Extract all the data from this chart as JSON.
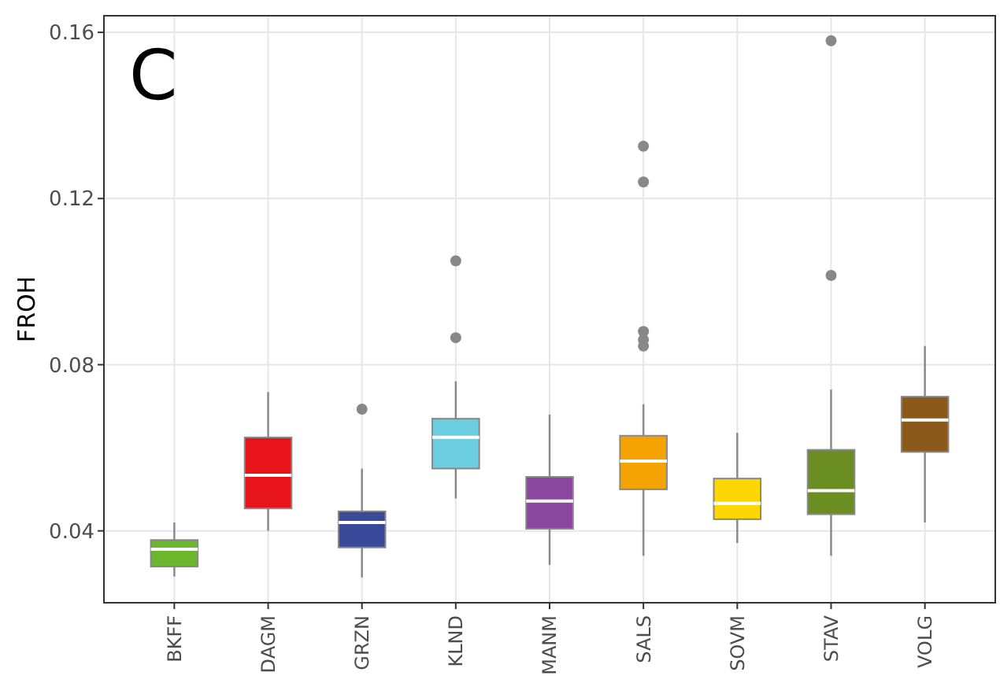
{
  "chart_data": {
    "type": "box",
    "title": "C",
    "ylabel": "FROH",
    "categories": [
      "BKFF",
      "DAGM",
      "GRZN",
      "KLND",
      "MANM",
      "SALS",
      "SOVM",
      "STAV",
      "VOLG"
    ],
    "colors": [
      "#6ab72e",
      "#e8141c",
      "#3a4a9a",
      "#6ccde0",
      "#8b46a0",
      "#f5a300",
      "#ffd700",
      "#6b8e23",
      "#8b5a1b"
    ],
    "boxes": [
      {
        "low": 0.029,
        "q1": 0.0314,
        "median": 0.0356,
        "q3": 0.0378,
        "high": 0.042
      },
      {
        "low": 0.04,
        "q1": 0.0454,
        "median": 0.0534,
        "q3": 0.0625,
        "high": 0.0734
      },
      {
        "low": 0.0288,
        "q1": 0.036,
        "median": 0.042,
        "q3": 0.0447,
        "high": 0.055,
        "outliers": [
          0.0693
        ]
      },
      {
        "low": 0.0478,
        "q1": 0.055,
        "median": 0.0625,
        "q3": 0.067,
        "high": 0.076,
        "outliers": [
          0.0865,
          0.105
        ]
      },
      {
        "low": 0.0318,
        "q1": 0.0405,
        "median": 0.0472,
        "q3": 0.053,
        "high": 0.068
      },
      {
        "low": 0.034,
        "q1": 0.05,
        "median": 0.0568,
        "q3": 0.0629,
        "high": 0.0705,
        "outliers": [
          0.0845,
          0.086,
          0.088,
          0.124,
          0.1326
        ]
      },
      {
        "low": 0.0371,
        "q1": 0.0428,
        "median": 0.0466,
        "q3": 0.0526,
        "high": 0.0636
      },
      {
        "low": 0.034,
        "q1": 0.044,
        "median": 0.0497,
        "q3": 0.0595,
        "high": 0.074,
        "outliers": [
          0.1015,
          0.158
        ]
      },
      {
        "low": 0.042,
        "q1": 0.059,
        "median": 0.0667,
        "q3": 0.0723,
        "high": 0.0845
      }
    ],
    "ylim": [
      0.0227,
      0.164
    ],
    "yticks": [
      0.04,
      0.08,
      0.12,
      0.16
    ],
    "grid": true
  }
}
